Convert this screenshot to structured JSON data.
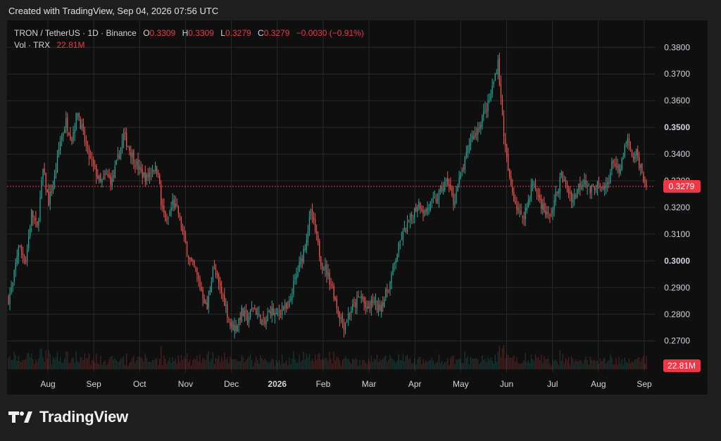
{
  "caption": "Created with TradingView, Sep 04, 2026 07:56 UTC",
  "legend": {
    "symbol": "TRON / TetherUS · 1D · Binance",
    "o_label": "O",
    "o_value": "0.3309",
    "h_label": "H",
    "h_value": "0.3309",
    "l_label": "L",
    "l_value": "0.3279",
    "c_label": "C",
    "c_value": "0.3279",
    "change": "−0.0030 (−0.91%)",
    "vol_label": "Vol · TRX",
    "vol_value": "22.81M"
  },
  "brand": {
    "name": "TradingView"
  },
  "colors": {
    "up": "#26a69a",
    "down": "#ef5350",
    "badge": "#f23645",
    "grid": "#2a2a2a",
    "text": "#d1d4dc"
  },
  "chart_data": {
    "type": "candlestick",
    "symbol": "TRON / TetherUS",
    "interval": "1D",
    "exchange": "Binance",
    "ylim": [
      0.2615,
      0.3885
    ],
    "y_ticks": [
      "0.3800",
      "0.3700",
      "0.3600",
      "0.3500",
      "0.3400",
      "0.3300",
      "0.3200",
      "0.3100",
      "0.3000",
      "0.2900",
      "0.2800",
      "0.2700"
    ],
    "y_ticks_bold": [
      "0.3500",
      "0.3000"
    ],
    "x_ticks": [
      "Aug",
      "Sep",
      "Oct",
      "Nov",
      "Dec",
      "2026",
      "Feb",
      "Mar",
      "Apr",
      "May",
      "Jun",
      "Jul",
      "Aug",
      "Sep"
    ],
    "x_ticks_bold": [
      "2026"
    ],
    "last_price": "0.3279",
    "last_volume": "22.81M",
    "grid": true,
    "close_path": [
      [
        0,
        0.286
      ],
      [
        3,
        0.291
      ],
      [
        7,
        0.306
      ],
      [
        12,
        0.3
      ],
      [
        16,
        0.318
      ],
      [
        20,
        0.312
      ],
      [
        24,
        0.334
      ],
      [
        28,
        0.322
      ],
      [
        32,
        0.331
      ],
      [
        36,
        0.345
      ],
      [
        40,
        0.352
      ],
      [
        44,
        0.346
      ],
      [
        48,
        0.356
      ],
      [
        52,
        0.347
      ],
      [
        56,
        0.339
      ],
      [
        60,
        0.334
      ],
      [
        64,
        0.329
      ],
      [
        68,
        0.332
      ],
      [
        72,
        0.33
      ],
      [
        76,
        0.338
      ],
      [
        80,
        0.347
      ],
      [
        84,
        0.342
      ],
      [
        88,
        0.337
      ],
      [
        92,
        0.333
      ],
      [
        96,
        0.331
      ],
      [
        100,
        0.335
      ],
      [
        104,
        0.334
      ],
      [
        106,
        0.321
      ],
      [
        110,
        0.314
      ],
      [
        114,
        0.322
      ],
      [
        118,
        0.318
      ],
      [
        122,
        0.308
      ],
      [
        126,
        0.3
      ],
      [
        130,
        0.296
      ],
      [
        134,
        0.289
      ],
      [
        138,
        0.282
      ],
      [
        142,
        0.298
      ],
      [
        146,
        0.291
      ],
      [
        150,
        0.285
      ],
      [
        154,
        0.276
      ],
      [
        158,
        0.275
      ],
      [
        162,
        0.281
      ],
      [
        166,
        0.278
      ],
      [
        170,
        0.283
      ],
      [
        174,
        0.279
      ],
      [
        178,
        0.276
      ],
      [
        182,
        0.282
      ],
      [
        186,
        0.279
      ],
      [
        190,
        0.283
      ],
      [
        194,
        0.281
      ],
      [
        198,
        0.291
      ],
      [
        202,
        0.298
      ],
      [
        206,
        0.306
      ],
      [
        210,
        0.318
      ],
      [
        213,
        0.311
      ],
      [
        217,
        0.3
      ],
      [
        221,
        0.296
      ],
      [
        225,
        0.29
      ],
      [
        229,
        0.281
      ],
      [
        233,
        0.276
      ],
      [
        237,
        0.281
      ],
      [
        241,
        0.284
      ],
      [
        245,
        0.287
      ],
      [
        249,
        0.281
      ],
      [
        253,
        0.285
      ],
      [
        257,
        0.282
      ],
      [
        261,
        0.286
      ],
      [
        265,
        0.292
      ],
      [
        269,
        0.301
      ],
      [
        273,
        0.309
      ],
      [
        277,
        0.313
      ],
      [
        281,
        0.318
      ],
      [
        285,
        0.322
      ],
      [
        289,
        0.318
      ],
      [
        293,
        0.321
      ],
      [
        297,
        0.323
      ],
      [
        301,
        0.327
      ],
      [
        305,
        0.33
      ],
      [
        309,
        0.322
      ],
      [
        313,
        0.33
      ],
      [
        317,
        0.337
      ],
      [
        321,
        0.346
      ],
      [
        325,
        0.348
      ],
      [
        329,
        0.354
      ],
      [
        333,
        0.358
      ],
      [
        337,
        0.367
      ],
      [
        340,
        0.375
      ],
      [
        342,
        0.36
      ],
      [
        345,
        0.342
      ],
      [
        348,
        0.33
      ],
      [
        352,
        0.322
      ],
      [
        356,
        0.316
      ],
      [
        360,
        0.32
      ],
      [
        364,
        0.33
      ],
      [
        368,
        0.324
      ],
      [
        372,
        0.319
      ],
      [
        376,
        0.316
      ],
      [
        380,
        0.324
      ],
      [
        384,
        0.332
      ],
      [
        388,
        0.327
      ],
      [
        392,
        0.323
      ],
      [
        396,
        0.328
      ],
      [
        400,
        0.331
      ],
      [
        404,
        0.326
      ],
      [
        408,
        0.329
      ],
      [
        412,
        0.326
      ],
      [
        416,
        0.329
      ],
      [
        420,
        0.338
      ],
      [
        424,
        0.332
      ],
      [
        428,
        0.342
      ],
      [
        430,
        0.345
      ],
      [
        433,
        0.338
      ],
      [
        436,
        0.34
      ],
      [
        440,
        0.333
      ],
      [
        443,
        0.3279
      ]
    ]
  }
}
